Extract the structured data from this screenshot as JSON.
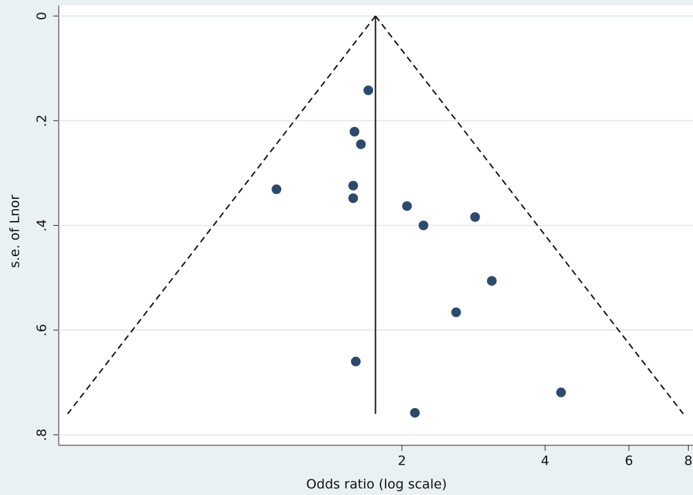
{
  "chart_data": {
    "type": "funnel",
    "xlabel": "Odds ratio (log scale)",
    "ylabel": "s.e. of Lnor",
    "x_log": true,
    "y_inverted": true,
    "xlim": [
      0.38,
      8.1
    ],
    "ylim": [
      -0.02,
      0.82
    ],
    "xticks": [
      2,
      4,
      6,
      8
    ],
    "yticks": [
      0,
      {
        "value": 0.2,
        "label": ".2"
      },
      {
        "value": 0.4,
        "label": ".4"
      },
      {
        "value": 0.6,
        "label": ".6"
      },
      {
        "value": 0.8,
        "label": ".8"
      }
    ],
    "grid": true,
    "pooled": 1.76,
    "se_max": 0.76,
    "z": 1.96,
    "color": "#2d4a6e",
    "x": [
      1.7,
      1.59,
      1.64,
      1.09,
      1.58,
      1.58,
      2.05,
      2.22,
      2.85,
      3.09,
      2.6,
      1.6,
      4.32,
      2.13
    ],
    "values": [
      0.142,
      0.221,
      0.245,
      0.331,
      0.324,
      0.348,
      0.363,
      0.4,
      0.384,
      0.506,
      0.566,
      0.66,
      0.719,
      0.758
    ]
  }
}
